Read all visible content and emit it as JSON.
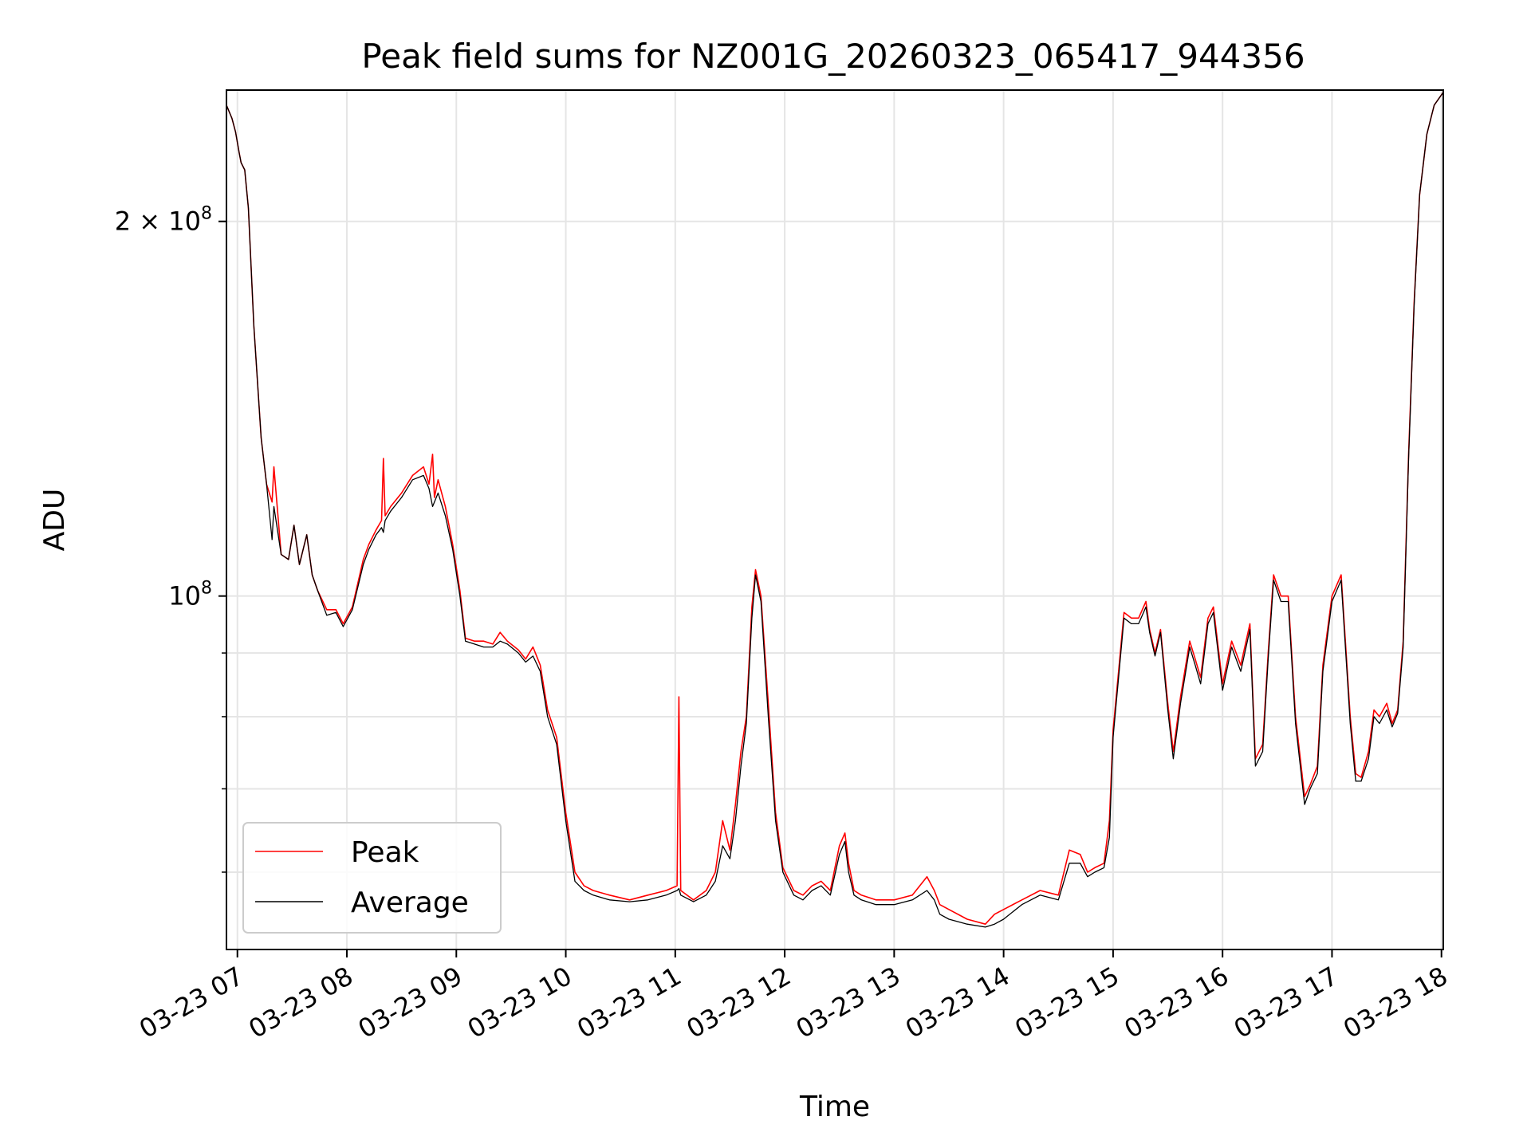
{
  "chart_data": {
    "type": "line",
    "title": "Peak field sums for NZ001G_20260323_065417_944356",
    "xlabel": "Time",
    "ylabel": "ADU",
    "y_scale": "log",
    "ylim": [
      52000000,
      255000000
    ],
    "xlim": [
      "03-23 06:54",
      "03-23 18:01"
    ],
    "grid": true,
    "legend_placement": "lower-left",
    "x_ticks": [
      "03-23 07",
      "03-23 08",
      "03-23 09",
      "03-23 10",
      "03-23 11",
      "03-23 12",
      "03-23 13",
      "03-23 14",
      "03-23 15",
      "03-23 16",
      "03-23 17",
      "03-23 18"
    ],
    "y_ticks_major": [
      {
        "value": 100000000,
        "mantissa": "",
        "base": "10",
        "exp": "8"
      },
      {
        "value": 200000000,
        "mantissa": "2",
        "base": "10",
        "exp": "8"
      }
    ],
    "y_ticks_minor": [
      60000000,
      70000000,
      80000000,
      90000000
    ],
    "series": [
      {
        "name": "Peak",
        "color": "#ff0000",
        "x": [
          "03-23 06:54",
          "03-23 06:57",
          "03-23 06:59",
          "03-23 07:01",
          "03-23 07:02",
          "03-23 07:04",
          "03-23 07:06",
          "03-23 07:09",
          "03-23 07:13",
          "03-23 07:16",
          "03-23 07:19",
          "03-23 07:20",
          "03-23 07:24",
          "03-23 07:28",
          "03-23 07:31",
          "03-23 07:34",
          "03-23 07:38",
          "03-23 07:41",
          "03-23 07:44",
          "03-23 07:49",
          "03-23 07:54",
          "03-23 07:58",
          "03-23 08:03",
          "03-23 08:09",
          "03-23 08:12",
          "03-23 08:16",
          "03-23 08:19",
          "03-23 08:20",
          "03-23 08:21",
          "03-23 08:24",
          "03-23 08:30",
          "03-23 08:36",
          "03-23 08:42",
          "03-23 08:45",
          "03-23 08:47",
          "03-23 08:48",
          "03-23 08:50",
          "03-23 08:54",
          "03-23 08:58",
          "03-23 09:02",
          "03-23 09:05",
          "03-23 09:10",
          "03-23 09:15",
          "03-23 09:20",
          "03-23 09:24",
          "03-23 09:28",
          "03-23 09:34",
          "03-23 09:38",
          "03-23 09:42",
          "03-23 09:46",
          "03-23 09:50",
          "03-23 09:55",
          "03-23 10:00",
          "03-23 10:05",
          "03-23 10:10",
          "03-23 10:15",
          "03-23 10:24",
          "03-23 10:35",
          "03-23 10:45",
          "03-23 10:55",
          "03-23 11:01",
          "03-23 11:02",
          "03-23 11:03",
          "03-23 11:10",
          "03-23 11:17",
          "03-23 11:22",
          "03-23 11:26",
          "03-23 11:30",
          "03-23 11:33",
          "03-23 11:36",
          "03-23 11:39",
          "03-23 11:42",
          "03-23 11:44",
          "03-23 11:47",
          "03-23 11:51",
          "03-23 11:55",
          "03-23 11:59",
          "03-23 12:05",
          "03-23 12:10",
          "03-23 12:15",
          "03-23 12:20",
          "03-23 12:25",
          "03-23 12:30",
          "03-23 12:33",
          "03-23 12:35",
          "03-23 12:38",
          "03-23 12:42",
          "03-23 12:50",
          "03-23 13:00",
          "03-23 13:10",
          "03-23 13:18",
          "03-23 13:22",
          "03-23 13:25",
          "03-23 13:30",
          "03-23 13:40",
          "03-23 13:50",
          "03-23 13:55",
          "03-23 14:00",
          "03-23 14:10",
          "03-23 14:20",
          "03-23 14:30",
          "03-23 14:36",
          "03-23 14:42",
          "03-23 14:46",
          "03-23 14:50",
          "03-23 14:55",
          "03-23 14:58",
          "03-23 15:00",
          "03-23 15:03",
          "03-23 15:06",
          "03-23 15:10",
          "03-23 15:14",
          "03-23 15:18",
          "03-23 15:20",
          "03-23 15:23",
          "03-23 15:26",
          "03-23 15:30",
          "03-23 15:33",
          "03-23 15:37",
          "03-23 15:42",
          "03-23 15:45",
          "03-23 15:48",
          "03-23 15:52",
          "03-23 15:55",
          "03-23 16:00",
          "03-23 16:05",
          "03-23 16:10",
          "03-23 16:15",
          "03-23 16:18",
          "03-23 16:22",
          "03-23 16:25",
          "03-23 16:28",
          "03-23 16:32",
          "03-23 16:36",
          "03-23 16:40",
          "03-23 16:45",
          "03-23 16:48",
          "03-23 16:52",
          "03-23 16:55",
          "03-23 17:00",
          "03-23 17:05",
          "03-23 17:10",
          "03-23 17:13",
          "03-23 17:16",
          "03-23 17:20",
          "03-23 17:23",
          "03-23 17:26",
          "03-23 17:30",
          "03-23 17:33",
          "03-23 17:36",
          "03-23 17:39",
          "03-23 17:42",
          "03-23 17:45",
          "03-23 17:48",
          "03-23 17:52",
          "03-23 17:56",
          "03-23 18:01"
        ],
        "values": [
          248000000,
          242000000,
          236000000,
          227000000,
          223000000,
          220000000,
          205000000,
          165000000,
          134000000,
          123000000,
          119000000,
          127000000,
          108000000,
          107000000,
          114000000,
          106000000,
          112000000,
          104000000,
          101000000,
          97500000,
          97500000,
          95000000,
          98000000,
          107000000,
          110000000,
          113000000,
          115000000,
          129000000,
          116000000,
          118000000,
          121000000,
          125000000,
          127000000,
          123000000,
          130000000,
          120000000,
          124000000,
          118000000,
          110000000,
          101000000,
          92500000,
          92000000,
          92000000,
          91500000,
          93500000,
          92000000,
          90500000,
          89000000,
          91000000,
          88000000,
          81000000,
          77000000,
          67000000,
          60000000,
          58500000,
          58000000,
          57500000,
          57000000,
          57500000,
          58000000,
          58500000,
          83000000,
          58000000,
          57000000,
          58000000,
          60000000,
          66000000,
          62500000,
          68000000,
          75000000,
          80000000,
          98000000,
          105000000,
          100000000,
          82000000,
          67000000,
          60500000,
          58000000,
          57500000,
          58500000,
          59000000,
          58000000,
          63000000,
          64500000,
          61000000,
          58000000,
          57500000,
          57000000,
          57000000,
          57500000,
          59500000,
          58000000,
          56500000,
          56000000,
          55000000,
          54500000,
          55500000,
          56000000,
          57000000,
          58000000,
          57500000,
          62500000,
          62000000,
          60000000,
          60500000,
          61000000,
          66000000,
          78000000,
          87000000,
          97000000,
          96000000,
          96000000,
          99000000,
          94000000,
          90000000,
          94000000,
          82000000,
          75000000,
          83000000,
          92000000,
          89000000,
          86000000,
          96000000,
          98000000,
          85000000,
          92000000,
          88000000,
          95000000,
          74000000,
          76000000,
          90000000,
          104000000,
          100000000,
          100000000,
          80000000,
          69000000,
          70500000,
          73000000,
          88000000,
          100000000,
          104000000,
          80000000,
          72000000,
          71500000,
          75000000,
          81000000,
          80000000,
          82000000,
          79000000,
          81000000,
          92000000,
          130000000,
          172000000,
          210000000,
          235000000,
          248000000,
          254000000
        ]
      },
      {
        "name": "Average",
        "color": "#000000",
        "x": [
          "03-23 06:54",
          "03-23 06:57",
          "03-23 06:59",
          "03-23 07:01",
          "03-23 07:02",
          "03-23 07:04",
          "03-23 07:06",
          "03-23 07:09",
          "03-23 07:13",
          "03-23 07:16",
          "03-23 07:19",
          "03-23 07:20",
          "03-23 07:24",
          "03-23 07:28",
          "03-23 07:31",
          "03-23 07:34",
          "03-23 07:38",
          "03-23 07:41",
          "03-23 07:44",
          "03-23 07:49",
          "03-23 07:54",
          "03-23 07:58",
          "03-23 08:03",
          "03-23 08:09",
          "03-23 08:12",
          "03-23 08:16",
          "03-23 08:19",
          "03-23 08:20",
          "03-23 08:21",
          "03-23 08:24",
          "03-23 08:30",
          "03-23 08:36",
          "03-23 08:42",
          "03-23 08:45",
          "03-23 08:47",
          "03-23 08:48",
          "03-23 08:50",
          "03-23 08:54",
          "03-23 08:58",
          "03-23 09:02",
          "03-23 09:05",
          "03-23 09:10",
          "03-23 09:15",
          "03-23 09:20",
          "03-23 09:24",
          "03-23 09:28",
          "03-23 09:34",
          "03-23 09:38",
          "03-23 09:42",
          "03-23 09:46",
          "03-23 09:50",
          "03-23 09:55",
          "03-23 10:00",
          "03-23 10:05",
          "03-23 10:10",
          "03-23 10:15",
          "03-23 10:24",
          "03-23 10:35",
          "03-23 10:45",
          "03-23 10:55",
          "03-23 11:01",
          "03-23 11:02",
          "03-23 11:03",
          "03-23 11:10",
          "03-23 11:17",
          "03-23 11:22",
          "03-23 11:26",
          "03-23 11:30",
          "03-23 11:33",
          "03-23 11:36",
          "03-23 11:39",
          "03-23 11:42",
          "03-23 11:44",
          "03-23 11:47",
          "03-23 11:51",
          "03-23 11:55",
          "03-23 11:59",
          "03-23 12:05",
          "03-23 12:10",
          "03-23 12:15",
          "03-23 12:20",
          "03-23 12:25",
          "03-23 12:30",
          "03-23 12:33",
          "03-23 12:35",
          "03-23 12:38",
          "03-23 12:42",
          "03-23 12:50",
          "03-23 13:00",
          "03-23 13:10",
          "03-23 13:18",
          "03-23 13:22",
          "03-23 13:25",
          "03-23 13:30",
          "03-23 13:40",
          "03-23 13:50",
          "03-23 13:55",
          "03-23 14:00",
          "03-23 14:10",
          "03-23 14:20",
          "03-23 14:30",
          "03-23 14:36",
          "03-23 14:42",
          "03-23 14:46",
          "03-23 14:50",
          "03-23 14:55",
          "03-23 14:58",
          "03-23 15:00",
          "03-23 15:03",
          "03-23 15:06",
          "03-23 15:10",
          "03-23 15:14",
          "03-23 15:18",
          "03-23 15:20",
          "03-23 15:23",
          "03-23 15:26",
          "03-23 15:30",
          "03-23 15:33",
          "03-23 15:37",
          "03-23 15:42",
          "03-23 15:45",
          "03-23 15:48",
          "03-23 15:52",
          "03-23 15:55",
          "03-23 16:00",
          "03-23 16:05",
          "03-23 16:10",
          "03-23 16:15",
          "03-23 16:18",
          "03-23 16:22",
          "03-23 16:25",
          "03-23 16:28",
          "03-23 16:32",
          "03-23 16:36",
          "03-23 16:40",
          "03-23 16:45",
          "03-23 16:48",
          "03-23 16:52",
          "03-23 16:55",
          "03-23 17:00",
          "03-23 17:05",
          "03-23 17:10",
          "03-23 17:13",
          "03-23 17:16",
          "03-23 17:20",
          "03-23 17:23",
          "03-23 17:26",
          "03-23 17:30",
          "03-23 17:33",
          "03-23 17:36",
          "03-23 17:39",
          "03-23 17:42",
          "03-23 17:45",
          "03-23 17:48",
          "03-23 17:52",
          "03-23 17:56",
          "03-23 18:01"
        ],
        "values": [
          248000000,
          242000000,
          236000000,
          227000000,
          223000000,
          220000000,
          205000000,
          165000000,
          134000000,
          123000000,
          111000000,
          118000000,
          108000000,
          107000000,
          114000000,
          106000000,
          112000000,
          104000000,
          101000000,
          96500000,
          97000000,
          94500000,
          97500000,
          106000000,
          109000000,
          112000000,
          113500000,
          112500000,
          115000000,
          117000000,
          120000000,
          124000000,
          125000000,
          122000000,
          118000000,
          119000000,
          121000000,
          116000000,
          109000000,
          100000000,
          92000000,
          91500000,
          91000000,
          91000000,
          92000000,
          91500000,
          90000000,
          88500000,
          89500000,
          87000000,
          80000000,
          76000000,
          66000000,
          59000000,
          58000000,
          57500000,
          57000000,
          56800000,
          57000000,
          57500000,
          58000000,
          58200000,
          57500000,
          56800000,
          57500000,
          59000000,
          63000000,
          61500000,
          66000000,
          73000000,
          79000000,
          96000000,
          104000000,
          99000000,
          80000000,
          66000000,
          60000000,
          57500000,
          57000000,
          58000000,
          58500000,
          57500000,
          62000000,
          63500000,
          60000000,
          57500000,
          57000000,
          56500000,
          56500000,
          57000000,
          58000000,
          57000000,
          55500000,
          55000000,
          54500000,
          54200000,
          54500000,
          55000000,
          56500000,
          57500000,
          57000000,
          61000000,
          61000000,
          59500000,
          60000000,
          60500000,
          64000000,
          77000000,
          86000000,
          96000000,
          95000000,
          95000000,
          98000000,
          93500000,
          89500000,
          93500000,
          81000000,
          74000000,
          82000000,
          91000000,
          88000000,
          85000000,
          95000000,
          97000000,
          84000000,
          91000000,
          87000000,
          94000000,
          73000000,
          75000000,
          89000000,
          103000000,
          99000000,
          99000000,
          79000000,
          68000000,
          70000000,
          72000000,
          87000000,
          99000000,
          103000000,
          79000000,
          71000000,
          71000000,
          74000000,
          80000000,
          79000000,
          81000000,
          78500000,
          80500000,
          91000000,
          129000000,
          171000000,
          210000000,
          235000000,
          248000000,
          254000000
        ]
      }
    ]
  }
}
